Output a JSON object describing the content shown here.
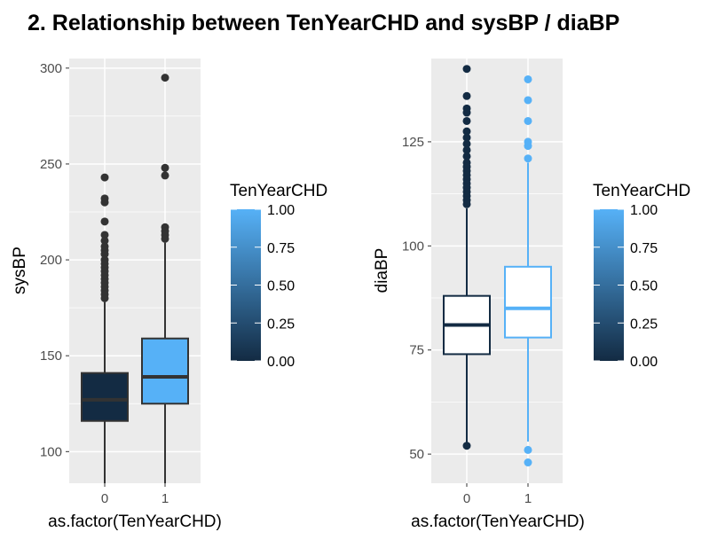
{
  "title": "2. Relationship between TenYearCHD and sysBP / diaBP",
  "chart_data": [
    {
      "type": "boxplot",
      "xlabel": "as.factor(TenYearCHD)",
      "ylabel": "sysBP",
      "ylim": [
        83.5,
        305
      ],
      "yticks": [
        100,
        150,
        200,
        250,
        300
      ],
      "categories": [
        "0",
        "1"
      ],
      "fill_mode": "fill",
      "boxes": [
        {
          "category": "0",
          "value": 0.0,
          "whisker_low": 83.5,
          "q1": 116,
          "median": 127,
          "q3": 141,
          "whisker_high": 178,
          "outliers": [
            243,
            232,
            230,
            220,
            213,
            210,
            207,
            205,
            203,
            200,
            198,
            196,
            194,
            192,
            190,
            188,
            186,
            184,
            182,
            180
          ]
        },
        {
          "category": "1",
          "value": 1.0,
          "whisker_low": 83.5,
          "q1": 125,
          "median": 139,
          "q3": 159,
          "whisker_high": 209,
          "outliers": [
            295,
            248,
            244,
            217,
            215,
            213,
            211
          ]
        }
      ],
      "legend": {
        "title": "TenYearCHD",
        "ticks": [
          "1.00",
          "0.75",
          "0.50",
          "0.25",
          "0.00"
        ]
      }
    },
    {
      "type": "boxplot",
      "xlabel": "as.factor(TenYearCHD)",
      "ylabel": "diaBP",
      "ylim": [
        43,
        145
      ],
      "yticks": [
        50,
        75,
        100,
        125
      ],
      "categories": [
        "0",
        "1"
      ],
      "fill_mode": "outline",
      "boxes": [
        {
          "category": "0",
          "value": 0.0,
          "whisker_low": 52,
          "q1": 74,
          "median": 81,
          "q3": 88,
          "whisker_high": 109,
          "outliers": [
            52,
            142.5,
            136,
            133,
            132,
            130,
            127.5,
            126,
            124.5,
            123,
            121.5,
            120,
            119,
            118,
            117,
            116,
            115,
            114,
            113,
            112,
            111,
            110
          ]
        },
        {
          "category": "1",
          "value": 1.0,
          "whisker_low": 53,
          "q1": 78,
          "median": 85,
          "q3": 95,
          "whisker_high": 120,
          "outliers": [
            48,
            51,
            121,
            124,
            125,
            130,
            135,
            140
          ]
        }
      ],
      "legend": {
        "title": "TenYearCHD",
        "ticks": [
          "1.00",
          "0.75",
          "0.50",
          "0.25",
          "0.00"
        ]
      }
    }
  ],
  "colors": {
    "low": "#132B43",
    "high": "#56B1F7",
    "panel": "#EBEBEB",
    "grid": "#FFFFFF",
    "axis_text": "#4D4D4D"
  }
}
